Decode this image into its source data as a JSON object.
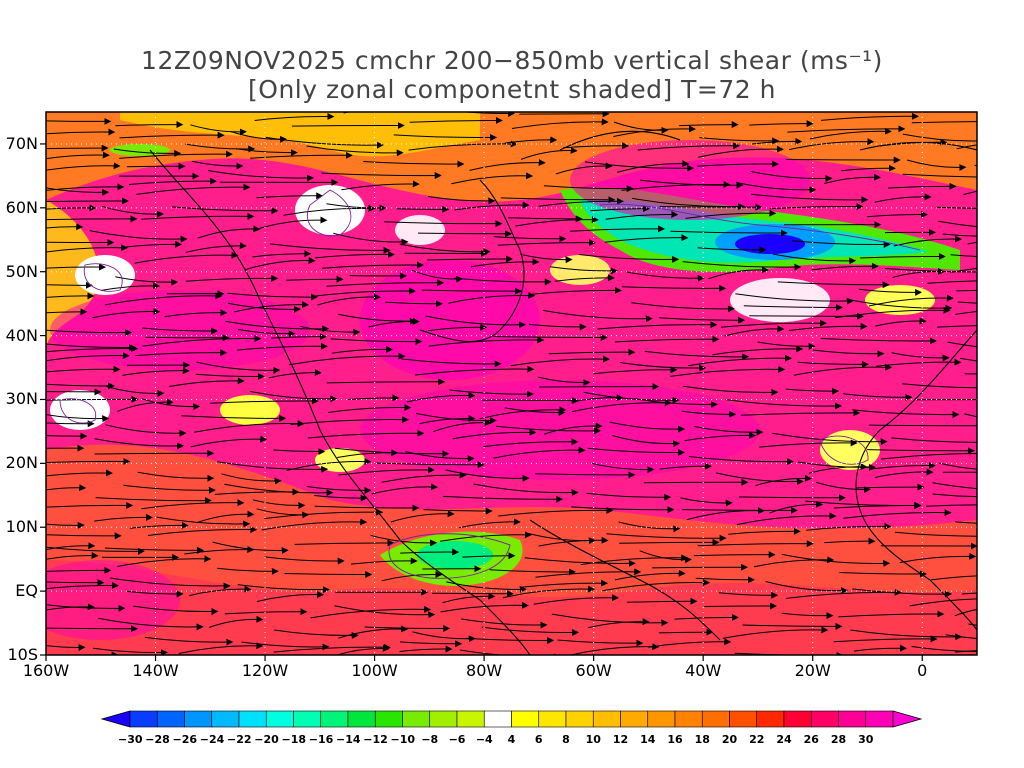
{
  "title": {
    "line1": "12Z09NOV2025 cmchr 200−850mb vertical shear (ms⁻¹)",
    "line2": "[Only zonal componetnt shaded] T=72 h"
  },
  "map": {
    "lon_range": [
      -160,
      10
    ],
    "lat_range": [
      -10,
      75
    ],
    "lat_labels": [
      {
        "lat": 70,
        "text": "70N"
      },
      {
        "lat": 60,
        "text": "60N"
      },
      {
        "lat": 50,
        "text": "50N"
      },
      {
        "lat": 40,
        "text": "40N"
      },
      {
        "lat": 30,
        "text": "30N"
      },
      {
        "lat": 20,
        "text": "20N"
      },
      {
        "lat": 10,
        "text": "10N"
      },
      {
        "lat": 0,
        "text": "EQ"
      },
      {
        "lat": -10,
        "text": "10S"
      }
    ],
    "lon_labels": [
      {
        "lon": -160,
        "text": "160W"
      },
      {
        "lon": -140,
        "text": "140W"
      },
      {
        "lon": -120,
        "text": "120W"
      },
      {
        "lon": -100,
        "text": "100W"
      },
      {
        "lon": -80,
        "text": "80W"
      },
      {
        "lon": -60,
        "text": "60W"
      },
      {
        "lon": -40,
        "text": "40W"
      },
      {
        "lon": -20,
        "text": "20W"
      },
      {
        "lon": 0,
        "text": "0"
      }
    ]
  },
  "colorbar": {
    "colors": [
      "#1a00ff",
      "#0a3cff",
      "#0064ff",
      "#0096ff",
      "#00b9ff",
      "#00e1ff",
      "#00ffe1",
      "#00ffb4",
      "#00f578",
      "#00e63c",
      "#28e600",
      "#78eb00",
      "#a0f000",
      "#c8f500",
      "#ffffff",
      "#ffff00",
      "#ffe600",
      "#ffd200",
      "#ffbe00",
      "#ffaa00",
      "#ff9600",
      "#ff8200",
      "#ff6e00",
      "#ff5000",
      "#ff2800",
      "#ff0032",
      "#ff0064",
      "#ff0096",
      "#ff00b4",
      "#ff00d2"
    ],
    "tick_labels": [
      "−30",
      "−28",
      "−26",
      "−24",
      "−22",
      "−20",
      "−18",
      "−16",
      "−14",
      "−12",
      "−10",
      "−8",
      "−6",
      "−4",
      "4",
      "6",
      "8",
      "10",
      "12",
      "14",
      "16",
      "18",
      "20",
      "22",
      "24",
      "26",
      "28",
      "30"
    ]
  }
}
